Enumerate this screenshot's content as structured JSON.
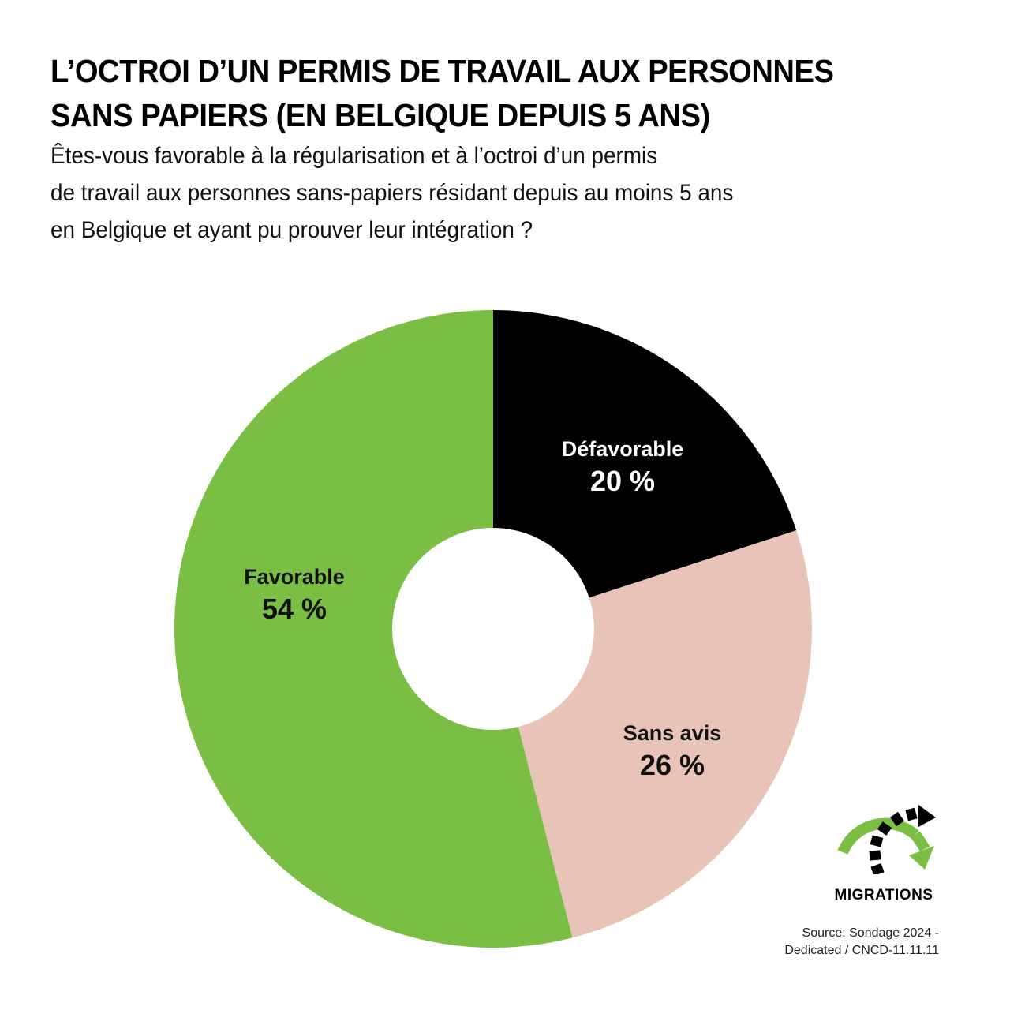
{
  "header": {
    "title_lines": [
      "L’OCTROI D’UN PERMIS DE TRAVAIL AUX PERSONNES",
      "SANS PAPIERS (EN BELGIQUE DEPUIS 5 ANS)"
    ],
    "subtitle_lines": [
      "Êtes-vous favorable à la régularisation et à l’octroi d’un permis",
      "de travail aux personnes sans-papiers résidant depuis au moins 5 ans",
      "en Belgique et ayant pu prouver leur intégration ?"
    ]
  },
  "segments": [
    {
      "name": "Défavorable",
      "pct_label": "20 %",
      "color": "#000000",
      "text_color": "#ffffff"
    },
    {
      "name": "Sans avis",
      "pct_label": "26 %",
      "color": "#e8c4b8",
      "text_color": "#111111"
    },
    {
      "name": "Favorable",
      "pct_label": "54 %",
      "color": "#7abf44",
      "text_color": "#111111"
    }
  ],
  "logo": {
    "icon": "migration-arrows-icon",
    "label": "MIGRATIONS",
    "green": "#7abf44"
  },
  "source": {
    "lines": [
      "Source: Sondage 2024 -",
      "Dedicated /  CNCD-11.11.11"
    ]
  },
  "chart_data": {
    "type": "pie",
    "subtype": "donut",
    "title": "L’OCTROI D’UN PERMIS DE TRAVAIL AUX PERSONNES SANS PAPIERS (EN BELGIQUE DEPUIS 5 ANS)",
    "subtitle": "Êtes-vous favorable à la régularisation et à l’octroi d’un permis de travail aux personnes sans-papiers résidant depuis au moins 5 ans en Belgique et ayant pu prouver leur intégration ?",
    "categories": [
      "Défavorable",
      "Sans avis",
      "Favorable"
    ],
    "values": [
      20,
      26,
      54
    ],
    "unit": "%",
    "colors": [
      "#000000",
      "#e8c4b8",
      "#7abf44"
    ],
    "start_angle": "12 o'clock, clockwise",
    "legend": "none (direct labels on segments)",
    "source": "Sondage 2024 - Dedicated / CNCD-11.11.11"
  }
}
